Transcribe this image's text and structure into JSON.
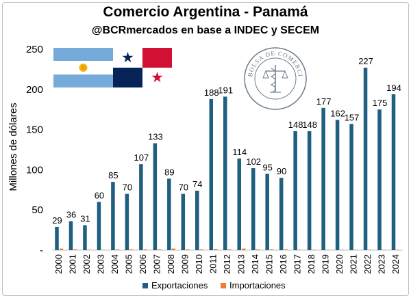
{
  "chart_data": {
    "type": "bar",
    "title": "Comercio Argentina - Panamá",
    "subtitle": "@BCRmercados en base a INDEC y SECEM",
    "xlabel": "",
    "ylabel": "Millones de dólares",
    "ylim": [
      0,
      250
    ],
    "yticks": [
      "-",
      "50",
      "100",
      "150",
      "200",
      "250"
    ],
    "grid": false,
    "legend_position": "bottom",
    "categories": [
      "2000",
      "2001",
      "2002",
      "2003",
      "2004",
      "2005",
      "2006",
      "2007",
      "2008",
      "2009",
      "2010",
      "2011",
      "2012",
      "2013",
      "2014",
      "2015",
      "2016",
      "2017",
      "2018",
      "2019",
      "2020",
      "2021",
      "2022",
      "2023",
      "2024"
    ],
    "series": [
      {
        "name": "Exportaciones",
        "color": "#1f5f7f",
        "values": [
          29,
          36,
          31,
          60,
          85,
          70,
          107,
          133,
          89,
          70,
          74,
          188,
          191,
          114,
          102,
          95,
          90,
          148,
          148,
          177,
          162,
          157,
          227,
          175,
          194
        ],
        "labels": [
          "29",
          "36",
          "31",
          "60",
          "85",
          "70",
          "107",
          "133",
          "89",
          "70",
          "74",
          "188",
          "191",
          "114",
          "102",
          "95",
          "90",
          "148",
          "148",
          "177",
          "162",
          "157",
          "227",
          "175",
          "194"
        ]
      },
      {
        "name": "Importaciones",
        "color": "#ed7d31",
        "values": [
          2,
          1,
          0.5,
          0.5,
          1,
          1,
          1,
          1,
          2,
          1,
          1,
          1.5,
          1,
          2,
          1,
          1,
          1,
          0.5,
          0.5,
          0.5,
          0.5,
          0.5,
          0.5,
          0.5,
          0.5
        ]
      }
    ]
  },
  "decorations": {
    "flags": [
      "argentina-flag",
      "panama-flag"
    ],
    "seal_text": "BOLSA DE COMERCIO DE ROSARIO"
  }
}
